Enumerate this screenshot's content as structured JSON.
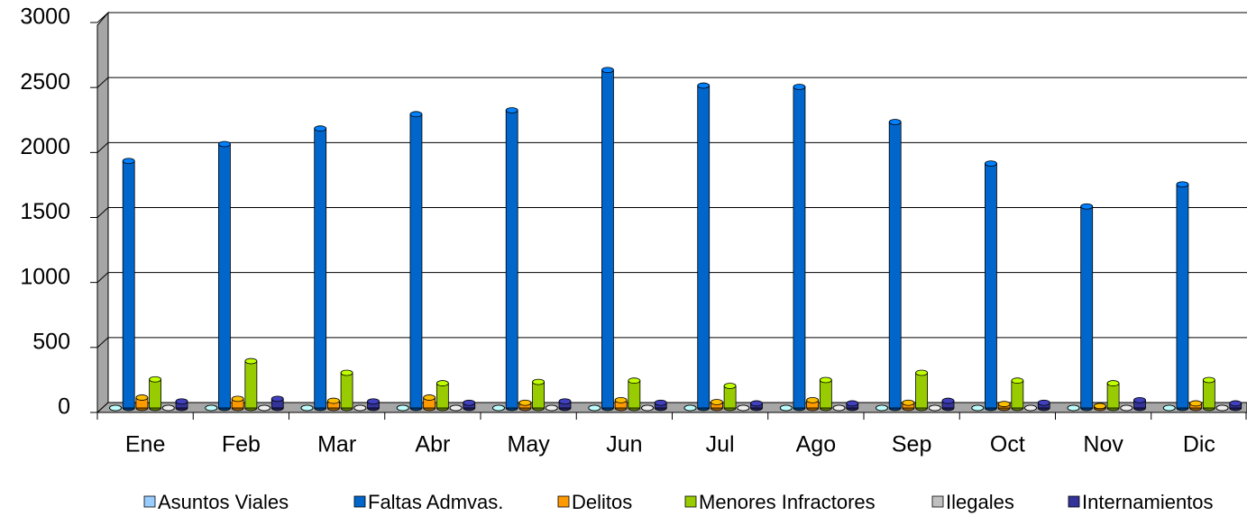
{
  "chart_data": {
    "type": "bar3d",
    "categories": [
      "Ene",
      "Feb",
      "Mar",
      "Abr",
      "May",
      "Jun",
      "Jul",
      "Ago",
      "Sep",
      "Oct",
      "Nov",
      "Dic"
    ],
    "series": [
      {
        "name": "Asuntos Viales",
        "color": "#99ccff",
        "values": [
          0,
          0,
          0,
          0,
          0,
          0,
          0,
          0,
          0,
          0,
          0,
          0
        ]
      },
      {
        "name": "Faltas Admvas.",
        "color": "#0066cc",
        "values": [
          1900,
          2030,
          2150,
          2260,
          2290,
          2600,
          2480,
          2470,
          2200,
          1880,
          1550,
          1720
        ]
      },
      {
        "name": "Delitos",
        "color": "#ff9900",
        "values": [
          80,
          70,
          55,
          80,
          40,
          60,
          45,
          60,
          40,
          30,
          15,
          35
        ]
      },
      {
        "name": "Menores Infractores",
        "color": "#99cc00",
        "values": [
          220,
          360,
          270,
          190,
          200,
          210,
          170,
          215,
          270,
          210,
          190,
          215
        ]
      },
      {
        "name": "Ilegales",
        "color": "#c0c0c0",
        "values": [
          0,
          0,
          0,
          0,
          0,
          0,
          0,
          0,
          0,
          0,
          0,
          0
        ]
      },
      {
        "name": "Internamientos",
        "color": "#333399",
        "values": [
          50,
          70,
          50,
          40,
          50,
          40,
          35,
          35,
          55,
          40,
          60,
          35
        ]
      }
    ],
    "ylim": [
      0,
      3000
    ],
    "yticks": [
      0,
      500,
      1000,
      1500,
      2000,
      2500,
      3000
    ],
    "grid": true,
    "legend": "bottom"
  }
}
